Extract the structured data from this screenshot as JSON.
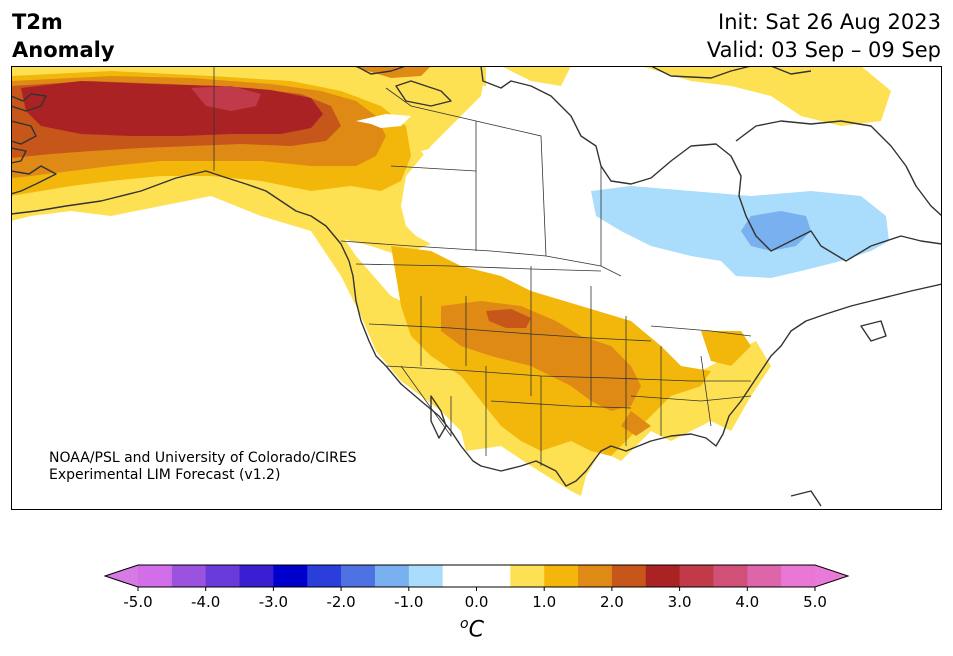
{
  "title": {
    "variable_line1": "T2m",
    "variable_line2": "Anomaly",
    "init": "Init: Sat 26 Aug 2023",
    "valid": "Valid: 03 Sep – 09 Sep"
  },
  "credit": {
    "line1": "NOAA/PSL and University of Colorado/CIRES",
    "line2": "Experimental LIM Forecast (v1.2)"
  },
  "colorbar": {
    "unit_base": "C",
    "unit_sup": "o",
    "ticks": [
      "-5.0",
      "-4.0",
      "-3.0",
      "-2.0",
      "-1.0",
      "0.0",
      "1.0",
      "2.0",
      "3.0",
      "4.0",
      "5.0"
    ],
    "colors": [
      "#d26fe8",
      "#9b52de",
      "#6a3adb",
      "#3a1fd2",
      "#0000cc",
      "#2a3edb",
      "#4f72e3",
      "#78b0f0",
      "#aadcfb",
      "#ffffff",
      "#ffffff",
      "#fee152",
      "#f3b70c",
      "#df8a14",
      "#c65619",
      "#ab2224",
      "#c03a4a",
      "#d05078",
      "#dd65aa",
      "#e877d6"
    ],
    "under_color": "#d87ae6",
    "over_color": "#ea7ad8"
  },
  "map_colors": {
    "anom_0_5": "#fee152",
    "anom_1_0": "#f3b70c",
    "anom_1_5": "#df8a14",
    "anom_2_0": "#c65619",
    "anom_2_5": "#ab2224",
    "anom_3_0": "#c03a4a",
    "cool_0_5": "#aadcfb",
    "cool_1_0": "#78b0f0"
  }
}
